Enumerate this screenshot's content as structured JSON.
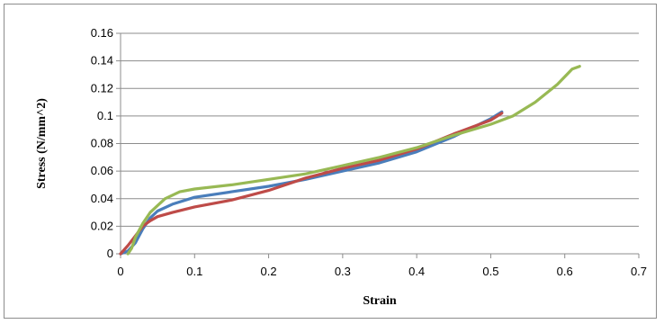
{
  "chart_data": {
    "type": "line",
    "title": "",
    "xlabel": "Strain",
    "ylabel": "Stress (N/mm^2)",
    "xlim": [
      0,
      0.7
    ],
    "ylim": [
      0,
      0.16
    ],
    "x_ticks": [
      "0",
      "0.1",
      "0.2",
      "0.3",
      "0.4",
      "0.5",
      "0.6",
      "0.7"
    ],
    "y_ticks": [
      "0",
      "0.02",
      "0.04",
      "0.06",
      "0.08",
      "0.1",
      "0.12",
      "0.14",
      "0.16"
    ],
    "grid": "horizontal",
    "legend": "none",
    "series": [
      {
        "color": "#4a7ebb",
        "points": [
          [
            0,
            0
          ],
          [
            0.01,
            0.002
          ],
          [
            0.02,
            0.008
          ],
          [
            0.03,
            0.018
          ],
          [
            0.04,
            0.026
          ],
          [
            0.05,
            0.031
          ],
          [
            0.07,
            0.036
          ],
          [
            0.1,
            0.041
          ],
          [
            0.15,
            0.045
          ],
          [
            0.2,
            0.049
          ],
          [
            0.25,
            0.054
          ],
          [
            0.3,
            0.06
          ],
          [
            0.35,
            0.066
          ],
          [
            0.4,
            0.074
          ],
          [
            0.45,
            0.085
          ],
          [
            0.5,
            0.098
          ],
          [
            0.515,
            0.103
          ]
        ]
      },
      {
        "color": "#be4b48",
        "points": [
          [
            0,
            0
          ],
          [
            0.01,
            0.006
          ],
          [
            0.02,
            0.013
          ],
          [
            0.03,
            0.02
          ],
          [
            0.04,
            0.024
          ],
          [
            0.05,
            0.027
          ],
          [
            0.07,
            0.03
          ],
          [
            0.1,
            0.034
          ],
          [
            0.15,
            0.039
          ],
          [
            0.2,
            0.046
          ],
          [
            0.25,
            0.055
          ],
          [
            0.3,
            0.062
          ],
          [
            0.35,
            0.068
          ],
          [
            0.4,
            0.076
          ],
          [
            0.45,
            0.087
          ],
          [
            0.5,
            0.097
          ],
          [
            0.515,
            0.102
          ]
        ]
      },
      {
        "color": "#98b954",
        "points": [
          [
            0.01,
            0
          ],
          [
            0.015,
            0.004
          ],
          [
            0.02,
            0.012
          ],
          [
            0.03,
            0.022
          ],
          [
            0.04,
            0.03
          ],
          [
            0.05,
            0.035
          ],
          [
            0.06,
            0.04
          ],
          [
            0.08,
            0.045
          ],
          [
            0.1,
            0.047
          ],
          [
            0.15,
            0.05
          ],
          [
            0.2,
            0.054
          ],
          [
            0.25,
            0.058
          ],
          [
            0.3,
            0.064
          ],
          [
            0.35,
            0.07
          ],
          [
            0.4,
            0.077
          ],
          [
            0.45,
            0.086
          ],
          [
            0.5,
            0.094
          ],
          [
            0.53,
            0.1
          ],
          [
            0.56,
            0.11
          ],
          [
            0.59,
            0.123
          ],
          [
            0.61,
            0.134
          ],
          [
            0.62,
            0.136
          ]
        ]
      }
    ]
  }
}
